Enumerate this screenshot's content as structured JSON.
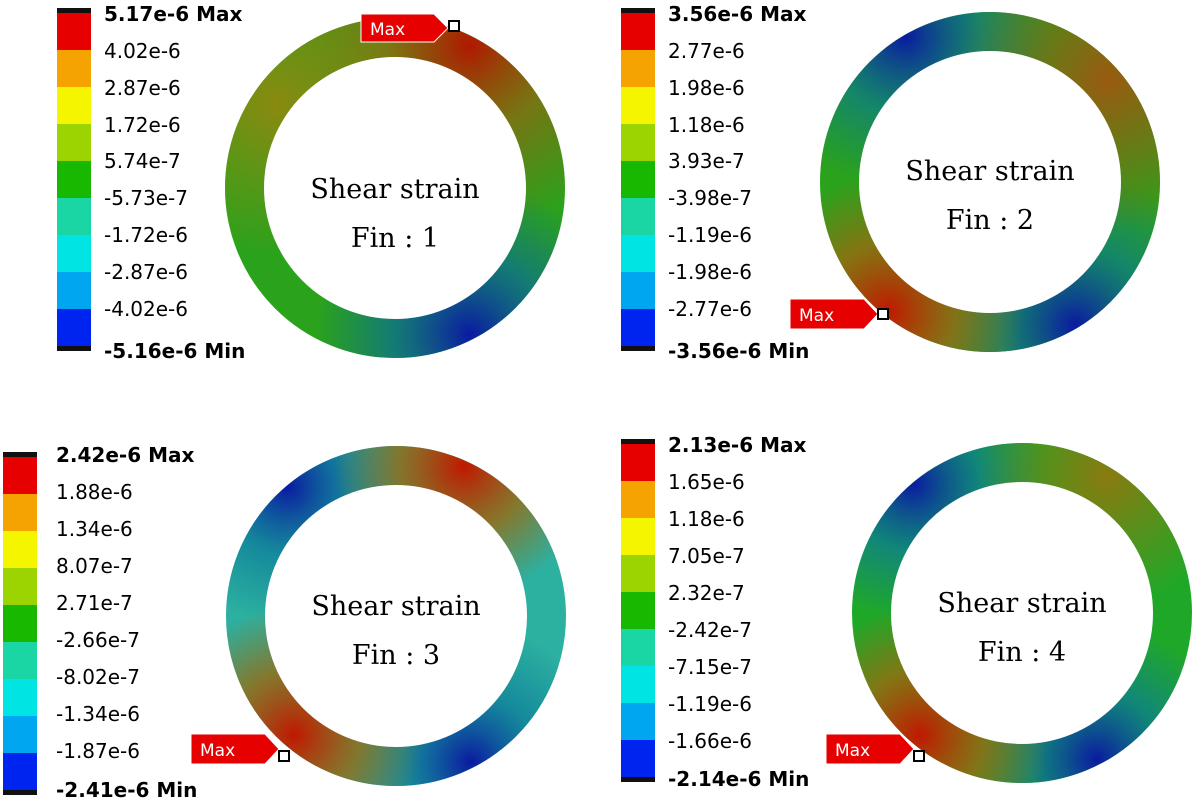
{
  "legend_colors": [
    "#e60000",
    "#f5a300",
    "#f5f500",
    "#9bd400",
    "#19b800",
    "#19d6a4",
    "#00e4e4",
    "#00a6f0",
    "#0024f0"
  ],
  "max_label": "Max",
  "panels": [
    {
      "title": "Shear strain",
      "subtitle": "Fin : 1",
      "legend_max": "5.17e-6 Max",
      "legend_min": "-5.16e-6 Min",
      "legend_ticks": [
        "4.02e-6",
        "2.87e-6",
        "1.72e-6",
        "5.74e-7",
        "-5.73e-7",
        "-1.72e-6",
        "-2.87e-6",
        "-4.02e-6"
      ]
    },
    {
      "title": "Shear strain",
      "subtitle": "Fin : 2",
      "legend_max": "3.56e-6 Max",
      "legend_min": "-3.56e-6 Min",
      "legend_ticks": [
        "2.77e-6",
        "1.98e-6",
        "1.18e-6",
        "3.93e-7",
        "-3.98e-7",
        "-1.19e-6",
        "-1.98e-6",
        "-2.77e-6"
      ]
    },
    {
      "title": "Shear strain",
      "subtitle": "Fin : 3",
      "legend_max": "2.42e-6 Max",
      "legend_min": "-2.41e-6 Min",
      "legend_ticks": [
        "1.88e-6",
        "1.34e-6",
        "8.07e-7",
        "2.71e-7",
        "-2.66e-7",
        "-8.02e-7",
        "-1.34e-6",
        "-1.87e-6"
      ]
    },
    {
      "title": "Shear strain",
      "subtitle": "Fin : 4",
      "legend_max": "2.13e-6 Max",
      "legend_min": "-2.14e-6 Min",
      "legend_ticks": [
        "1.65e-6",
        "1.18e-6",
        "7.05e-7",
        "2.32e-7",
        "-2.42e-7",
        "-7.15e-7",
        "-1.19e-6",
        "-1.66e-6"
      ]
    }
  ]
}
